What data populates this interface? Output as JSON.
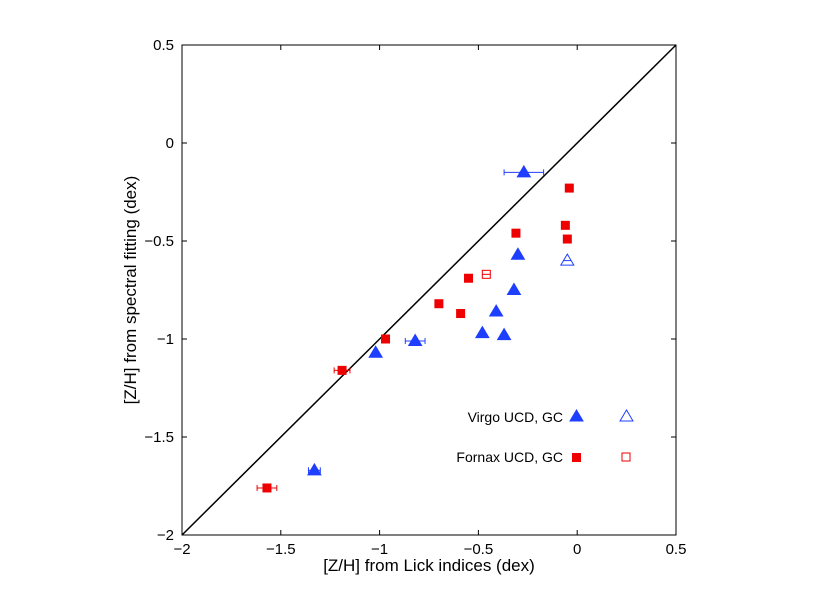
{
  "chart_data": {
    "type": "scatter",
    "title": "",
    "xlabel": "[Z/H] from Lick indices (dex)",
    "ylabel": "[Z/H] from spectral fitting (dex)",
    "xlim": [
      -2,
      0.5
    ],
    "ylim": [
      -2,
      0.5
    ],
    "xticks": [
      -2,
      -1.5,
      -1,
      -0.5,
      0,
      0.5
    ],
    "yticks": [
      -2,
      -1.5,
      -1,
      -0.5,
      0,
      0.5
    ],
    "xtick_labels": [
      "−2",
      "−1.5",
      "−1",
      "−0.5",
      "0",
      "0.5"
    ],
    "ytick_labels": [
      "−2",
      "−1.5",
      "−1",
      "−0.5",
      "0",
      "0.5"
    ],
    "grid": false,
    "legend_position": "bottom-right",
    "reference_line": {
      "name": "one-to-one",
      "from": [
        -2,
        -2
      ],
      "to": [
        0.5,
        0.5
      ],
      "color": "#000000"
    },
    "colors": {
      "virgo": "#1f3fff",
      "fornax": "#ee0000"
    },
    "series": [
      {
        "name": "Virgo UCD",
        "marker": "triangle-filled",
        "color": "#1f3fff",
        "points": [
          {
            "x": -0.27,
            "y": -0.15,
            "xerr": 0.1
          },
          {
            "x": -0.3,
            "y": -0.57
          },
          {
            "x": -0.32,
            "y": -0.75
          },
          {
            "x": -0.41,
            "y": -0.86
          },
          {
            "x": -0.48,
            "y": -0.97
          },
          {
            "x": -0.37,
            "y": -0.98
          },
          {
            "x": -0.82,
            "y": -1.01,
            "xerr": 0.05
          },
          {
            "x": -1.02,
            "y": -1.07
          },
          {
            "x": -1.33,
            "y": -1.67,
            "xerr": 0.03
          }
        ]
      },
      {
        "name": "Virgo GC",
        "marker": "triangle-open",
        "color": "#1f3fff",
        "points": [
          {
            "x": -0.05,
            "y": -0.6
          }
        ]
      },
      {
        "name": "Fornax UCD",
        "marker": "square-filled",
        "color": "#ee0000",
        "points": [
          {
            "x": -0.04,
            "y": -0.23
          },
          {
            "x": -0.06,
            "y": -0.42
          },
          {
            "x": -0.05,
            "y": -0.49
          },
          {
            "x": -0.31,
            "y": -0.46
          },
          {
            "x": -0.55,
            "y": -0.69
          },
          {
            "x": -0.7,
            "y": -0.82
          },
          {
            "x": -0.59,
            "y": -0.87
          },
          {
            "x": -0.97,
            "y": -1.0
          },
          {
            "x": -1.19,
            "y": -1.16,
            "xerr": 0.04
          },
          {
            "x": -1.57,
            "y": -1.76,
            "xerr": 0.05
          }
        ]
      },
      {
        "name": "Fornax GC",
        "marker": "square-open",
        "color": "#ee0000",
        "points": [
          {
            "x": -0.46,
            "y": -0.67
          }
        ]
      }
    ],
    "legend": [
      {
        "label": "Virgo UCD, GC",
        "filled_marker": "triangle-filled",
        "open_marker": "triangle-open",
        "color": "#1f3fff"
      },
      {
        "label": "Fornax UCD, GC",
        "filled_marker": "square-filled",
        "open_marker": "square-open",
        "color": "#ee0000"
      }
    ]
  }
}
